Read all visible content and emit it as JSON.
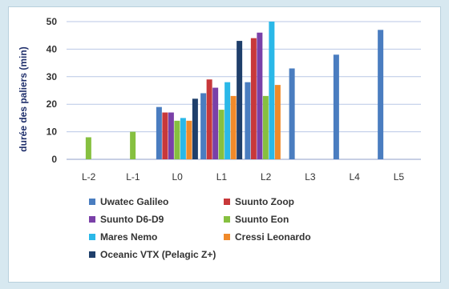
{
  "chart_data": {
    "type": "bar",
    "title": "",
    "xlabel": "",
    "ylabel": "durée des paliers (min)",
    "ylim": [
      0,
      50
    ],
    "yticks": [
      0,
      10,
      20,
      30,
      40,
      50
    ],
    "grid": true,
    "legend_position": "bottom",
    "categories": [
      "L-2",
      "L-1",
      "L0",
      "L1",
      "L2",
      "L3",
      "L4",
      "L5"
    ],
    "series": [
      {
        "name": "Uwatec Galileo",
        "color": "#4a7dc0",
        "values": [
          null,
          null,
          19,
          24,
          28,
          33,
          38,
          47
        ]
      },
      {
        "name": "Suunto Zoop",
        "color": "#c8383a",
        "values": [
          null,
          null,
          17,
          29,
          44,
          null,
          null,
          null
        ]
      },
      {
        "name": "Suunto D6-D9",
        "color": "#7a40a8",
        "values": [
          null,
          null,
          17,
          26,
          46,
          null,
          null,
          null
        ]
      },
      {
        "name": "Suunto Eon",
        "color": "#86c040",
        "values": [
          8,
          10,
          14,
          18,
          23,
          null,
          null,
          null
        ]
      },
      {
        "name": "Mares Nemo",
        "color": "#2ab8e8",
        "values": [
          null,
          null,
          15,
          28,
          50,
          null,
          null,
          null
        ]
      },
      {
        "name": "Cressi Leonardo",
        "color": "#f08a2a",
        "values": [
          null,
          null,
          14,
          23,
          27,
          null,
          null,
          null
        ]
      },
      {
        "name": "Oceanic VTX (Pelagic Z+)",
        "color": "#1f3f6b",
        "values": [
          null,
          null,
          22,
          43,
          null,
          null,
          null,
          null
        ]
      }
    ]
  }
}
